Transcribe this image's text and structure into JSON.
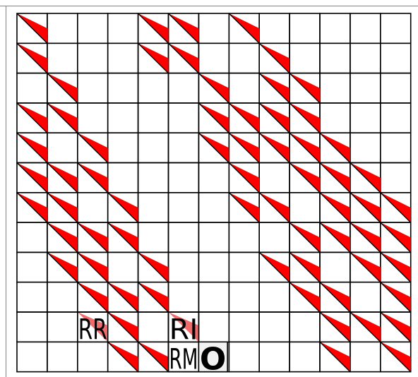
{
  "grid": {
    "columns": 13,
    "rows": 12
  },
  "colors": {
    "triangle_fill": "#ff0000",
    "cell_stroke": "#000000",
    "label_fill": "#f06b6b",
    "circle_fill": "#f2f2f2",
    "background": "#ffffff"
  },
  "triangle_cells": [
    [
      0,
      0
    ],
    [
      0,
      4
    ],
    [
      4,
      0
    ],
    [
      5,
      0
    ],
    [
      7,
      0
    ],
    [
      8,
      1
    ],
    [
      4,
      1
    ],
    [
      5,
      1
    ],
    [
      0,
      1
    ],
    [
      1,
      2
    ],
    [
      1,
      3
    ],
    [
      0,
      3
    ],
    [
      6,
      2
    ],
    [
      6,
      3
    ],
    [
      7,
      3
    ],
    [
      7,
      4
    ],
    [
      8,
      2
    ],
    [
      9,
      2
    ],
    [
      8,
      3
    ],
    [
      9,
      3
    ],
    [
      8,
      4
    ],
    [
      9,
      4
    ],
    [
      10,
      4
    ],
    [
      2,
      4
    ],
    [
      2,
      5
    ],
    [
      0,
      5
    ],
    [
      1,
      5
    ],
    [
      0,
      6
    ],
    [
      1,
      6
    ],
    [
      3,
      6
    ],
    [
      6,
      4
    ],
    [
      7,
      5
    ],
    [
      9,
      5
    ],
    [
      10,
      5
    ],
    [
      11,
      5
    ],
    [
      7,
      6
    ],
    [
      8,
      6
    ],
    [
      10,
      6
    ],
    [
      11,
      6
    ],
    [
      12,
      6
    ],
    [
      1,
      7
    ],
    [
      2,
      7
    ],
    [
      3,
      7
    ],
    [
      9,
      7
    ],
    [
      10,
      7
    ],
    [
      11,
      7
    ],
    [
      12,
      7
    ],
    [
      1,
      8
    ],
    [
      2,
      8
    ],
    [
      4,
      8
    ],
    [
      8,
      8
    ],
    [
      9,
      8
    ],
    [
      11,
      8
    ],
    [
      12,
      8
    ],
    [
      2,
      9
    ],
    [
      3,
      9
    ],
    [
      4,
      9
    ],
    [
      9,
      9
    ],
    [
      10,
      9
    ],
    [
      12,
      9
    ],
    [
      3,
      10
    ],
    [
      10,
      10
    ],
    [
      11,
      10
    ],
    [
      12,
      10
    ],
    [
      3,
      11
    ],
    [
      4,
      11
    ],
    [
      10,
      11
    ],
    [
      12,
      11
    ]
  ],
  "labels": [
    {
      "text": "RR",
      "col": 2,
      "row": 10,
      "highlight": true
    },
    {
      "text": "RI",
      "col": 5,
      "row": 10,
      "highlight": true
    },
    {
      "text": "RM",
      "col": 5,
      "row": 11,
      "highlight": false
    }
  ],
  "circle": {
    "text": "O",
    "col": 6,
    "row": 11
  }
}
